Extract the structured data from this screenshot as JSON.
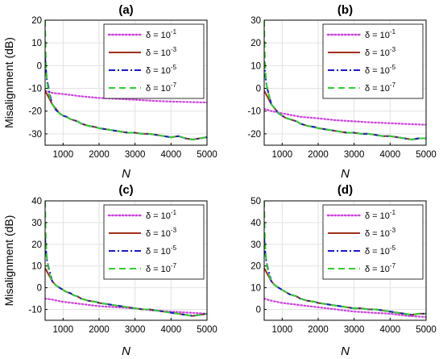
{
  "chart_data": [
    {
      "type": "line",
      "title": "(a)",
      "xlabel": "N",
      "ylabel": "Misalignment (dB)",
      "xlim": [
        500,
        5000
      ],
      "ylim": [
        -35,
        20
      ],
      "xticks": [
        1000,
        2000,
        3000,
        4000,
        5000
      ],
      "yticks": [
        -30,
        -20,
        -10,
        0,
        10,
        20
      ],
      "grid": true,
      "legend_position": "top-right",
      "series": [
        {
          "name": "δ = 10⁻¹",
          "color": "#cc44dd",
          "style": "dotted",
          "x": [
            500,
            700,
            1000,
            1500,
            2000,
            2500,
            3000,
            3500,
            4000,
            4500,
            5000
          ],
          "y": [
            -11,
            -12,
            -12.5,
            -13.5,
            -14.2,
            -14.6,
            -15,
            -15.5,
            -15.8,
            -16,
            -16.2
          ]
        },
        {
          "name": "δ = 10⁻³",
          "color": "#a0301c",
          "style": "solid",
          "x": [
            500,
            600,
            700,
            800,
            900,
            1000,
            1100,
            1200,
            1300,
            1400,
            1500,
            1700,
            1900,
            2000,
            2200,
            2400,
            2600,
            2800,
            3000,
            3200,
            3400,
            3600,
            3800,
            4000,
            4200,
            4400,
            4600,
            4800,
            5000
          ],
          "y": [
            -11,
            -14,
            -17,
            -19,
            -21,
            -22,
            -22.5,
            -23.5,
            -24,
            -24.5,
            -25.5,
            -26.5,
            -27,
            -27.5,
            -28,
            -28.5,
            -29,
            -29.5,
            -29.5,
            -30,
            -30,
            -30.5,
            -31,
            -31.5,
            -31,
            -32,
            -32.5,
            -32,
            -31.5
          ]
        },
        {
          "name": "δ = 10⁻⁵",
          "color": "#1a1acc",
          "style": "dashdot",
          "x": [
            500,
            520,
            550,
            600,
            650,
            700,
            800,
            900,
            1000,
            1100,
            1200,
            1300,
            1400,
            1500,
            1700,
            1900,
            2000,
            2200,
            2400,
            2600,
            2800,
            3000,
            3200,
            3400,
            3600,
            3800,
            4000,
            4200,
            4400,
            4600,
            4800,
            5000
          ],
          "y": [
            4,
            -1,
            -6,
            -10,
            -14,
            -17,
            -19.5,
            -21,
            -22,
            -22.5,
            -23.5,
            -24,
            -24.5,
            -25.5,
            -26.5,
            -27,
            -27.5,
            -28,
            -28.5,
            -29,
            -29.5,
            -29.5,
            -30,
            -30,
            -30.5,
            -31,
            -31.5,
            -31,
            -32,
            -32.5,
            -32,
            -31.5
          ]
        },
        {
          "name": "δ = 10⁻⁷",
          "color": "#33cc33",
          "style": "dashed",
          "x": [
            500,
            510,
            520,
            540,
            560,
            600,
            650,
            700,
            800,
            900,
            1000,
            1100,
            1200,
            1300,
            1400,
            1500,
            1700,
            1900,
            2000,
            2200,
            2400,
            2600,
            2800,
            3000,
            3200,
            3400,
            3600,
            3800,
            4000,
            4200,
            4400,
            4600,
            4800,
            5000
          ],
          "y": [
            20,
            10,
            2,
            -4,
            -8,
            -12,
            -15,
            -17,
            -19.5,
            -21,
            -22,
            -22.5,
            -23.5,
            -24,
            -24.5,
            -25.5,
            -26.5,
            -27,
            -27.5,
            -28,
            -28.5,
            -29,
            -29.5,
            -29.5,
            -30,
            -30,
            -30.5,
            -31,
            -31.5,
            -31,
            -32,
            -32.5,
            -32,
            -31.5
          ]
        }
      ]
    },
    {
      "type": "line",
      "title": "(b)",
      "xlabel": "N",
      "ylabel": "",
      "xlim": [
        500,
        5000
      ],
      "ylim": [
        -25,
        30
      ],
      "xticks": [
        1000,
        2000,
        3000,
        4000,
        5000
      ],
      "yticks": [
        -20,
        -10,
        0,
        10,
        20,
        30
      ],
      "grid": true,
      "legend_position": "top-right",
      "series": [
        {
          "name": "δ = 10⁻¹",
          "color": "#cc44dd",
          "style": "dotted",
          "x": [
            500,
            700,
            1000,
            1500,
            2000,
            2500,
            3000,
            3500,
            4000,
            4500,
            5000
          ],
          "y": [
            -9,
            -10,
            -11,
            -12.5,
            -13.2,
            -14,
            -14.5,
            -15,
            -15.3,
            -15.7,
            -16
          ]
        },
        {
          "name": "δ = 10⁻³",
          "color": "#a0301c",
          "style": "solid",
          "x": [
            500,
            600,
            700,
            800,
            900,
            1000,
            1100,
            1200,
            1300,
            1400,
            1500,
            1700,
            1900,
            2000,
            2200,
            2400,
            2600,
            2800,
            3000,
            3200,
            3400,
            3600,
            3800,
            4000,
            4200,
            4400,
            4600,
            4800,
            5000
          ],
          "y": [
            -1,
            -4,
            -7,
            -9,
            -11,
            -12,
            -13,
            -13.5,
            -14,
            -14.5,
            -15.5,
            -16.5,
            -17,
            -17.5,
            -18,
            -18.5,
            -19,
            -19.5,
            -19.5,
            -20,
            -20,
            -20.5,
            -21,
            -21,
            -21.5,
            -22,
            -22.5,
            -22,
            -22
          ]
        },
        {
          "name": "δ = 10⁻⁵",
          "color": "#1a1acc",
          "style": "dashdot",
          "x": [
            500,
            520,
            550,
            600,
            650,
            700,
            800,
            900,
            1000,
            1100,
            1200,
            1300,
            1400,
            1500,
            1700,
            1900,
            2000,
            2200,
            2400,
            2600,
            2800,
            3000,
            3200,
            3400,
            3600,
            3800,
            4000,
            4200,
            4400,
            4600,
            4800,
            5000
          ],
          "y": [
            12,
            8,
            3,
            -1,
            -4,
            -7,
            -9,
            -11,
            -12,
            -13,
            -13.5,
            -14,
            -14.5,
            -15.5,
            -16.5,
            -17,
            -17.5,
            -18,
            -18.5,
            -19,
            -19.5,
            -19.5,
            -20,
            -20,
            -20.5,
            -21,
            -21,
            -21.5,
            -22,
            -22.5,
            -22,
            -22
          ]
        },
        {
          "name": "δ = 10⁻⁷",
          "color": "#33cc33",
          "style": "dashed",
          "x": [
            500,
            510,
            520,
            540,
            560,
            600,
            650,
            700,
            800,
            900,
            1000,
            1100,
            1200,
            1300,
            1400,
            1500,
            1700,
            1900,
            2000,
            2200,
            2400,
            2600,
            2800,
            3000,
            3200,
            3400,
            3600,
            3800,
            4000,
            4200,
            4400,
            4600,
            4800,
            5000
          ],
          "y": [
            30,
            20,
            12,
            6,
            2,
            -1,
            -4,
            -7,
            -9,
            -11,
            -12,
            -13,
            -13.5,
            -14,
            -14.5,
            -15.5,
            -16.5,
            -17,
            -17.5,
            -18,
            -18.5,
            -19,
            -19.5,
            -19.5,
            -20,
            -20,
            -20.5,
            -21,
            -21,
            -21.5,
            -22,
            -22.5,
            -22,
            -22
          ]
        }
      ]
    },
    {
      "type": "line",
      "title": "(c)",
      "xlabel": "N",
      "ylabel": "Misalignment (dB)",
      "xlim": [
        500,
        5000
      ],
      "ylim": [
        -15,
        40
      ],
      "xticks": [
        1000,
        2000,
        3000,
        4000,
        5000
      ],
      "yticks": [
        -10,
        0,
        10,
        20,
        30,
        40
      ],
      "grid": true,
      "legend_position": "top-right",
      "series": [
        {
          "name": "δ = 10⁻¹",
          "color": "#cc44dd",
          "style": "dotted",
          "x": [
            500,
            700,
            1000,
            1500,
            2000,
            2500,
            3000,
            3500,
            4000,
            4500,
            5000
          ],
          "y": [
            -5,
            -5.5,
            -6.5,
            -7.5,
            -8.5,
            -9,
            -9.5,
            -10.5,
            -11,
            -11.5,
            -12
          ]
        },
        {
          "name": "δ = 10⁻³",
          "color": "#a0301c",
          "style": "solid",
          "x": [
            500,
            600,
            700,
            800,
            900,
            1000,
            1100,
            1200,
            1300,
            1400,
            1500,
            1700,
            1900,
            2000,
            2200,
            2400,
            2600,
            2800,
            3000,
            3200,
            3400,
            3600,
            3800,
            4000,
            4200,
            4400,
            4600,
            4800,
            5000
          ],
          "y": [
            9,
            6,
            3,
            1,
            0,
            -1,
            -2,
            -2.5,
            -3.5,
            -4,
            -5,
            -6,
            -6.5,
            -7,
            -7.5,
            -8,
            -8.5,
            -9,
            -9.5,
            -10,
            -10,
            -10.5,
            -11,
            -11.5,
            -12,
            -12.5,
            -13,
            -12.5,
            -12
          ]
        },
        {
          "name": "δ = 10⁻⁵",
          "color": "#1a1acc",
          "style": "dashdot",
          "x": [
            500,
            520,
            550,
            600,
            650,
            700,
            800,
            900,
            1000,
            1100,
            1200,
            1300,
            1400,
            1500,
            1700,
            1900,
            2000,
            2200,
            2400,
            2600,
            2800,
            3000,
            3200,
            3400,
            3600,
            3800,
            4000,
            4200,
            4400,
            4600,
            4800,
            5000
          ],
          "y": [
            23,
            18,
            13,
            9,
            6,
            3,
            1,
            0,
            -1,
            -2,
            -2.5,
            -3.5,
            -4,
            -5,
            -6,
            -6.5,
            -7,
            -7.5,
            -8,
            -8.5,
            -9,
            -9.5,
            -10,
            -10,
            -10.5,
            -11,
            -11.5,
            -12,
            -12.5,
            -13,
            -12.5,
            -12
          ]
        },
        {
          "name": "δ = 10⁻⁷",
          "color": "#33cc33",
          "style": "dashed",
          "x": [
            500,
            510,
            520,
            540,
            560,
            600,
            650,
            700,
            800,
            900,
            1000,
            1100,
            1200,
            1300,
            1400,
            1500,
            1700,
            1900,
            2000,
            2200,
            2400,
            2600,
            2800,
            3000,
            3200,
            3400,
            3600,
            3800,
            4000,
            4200,
            4400,
            4600,
            4800,
            5000
          ],
          "y": [
            40,
            30,
            22,
            16,
            12,
            8,
            5,
            3,
            1,
            0,
            -1,
            -2,
            -2.5,
            -3.5,
            -4,
            -5,
            -6,
            -6.5,
            -7,
            -7.5,
            -8,
            -8.5,
            -9,
            -9.5,
            -10,
            -10,
            -10.5,
            -11,
            -11.5,
            -12,
            -12.5,
            -13,
            -12.5,
            -12
          ]
        }
      ]
    },
    {
      "type": "line",
      "title": "(d)",
      "xlabel": "N",
      "ylabel": "",
      "xlim": [
        500,
        5000
      ],
      "ylim": [
        -5,
        50
      ],
      "xticks": [
        1000,
        2000,
        3000,
        4000,
        5000
      ],
      "yticks": [
        0,
        10,
        20,
        30,
        40,
        50
      ],
      "grid": true,
      "legend_position": "top-right",
      "series": [
        {
          "name": "δ = 10⁻¹",
          "color": "#cc44dd",
          "style": "dotted",
          "x": [
            500,
            700,
            1000,
            1500,
            2000,
            2500,
            3000,
            3500,
            4000,
            4500,
            5000
          ],
          "y": [
            5,
            4,
            3,
            2,
            1,
            0,
            -1,
            -1.5,
            -2,
            -3,
            -3.5
          ]
        },
        {
          "name": "δ = 10⁻³",
          "color": "#a0301c",
          "style": "solid",
          "x": [
            500,
            600,
            700,
            800,
            900,
            1000,
            1100,
            1200,
            1300,
            1400,
            1500,
            1700,
            1900,
            2000,
            2200,
            2400,
            2600,
            2800,
            3000,
            3200,
            3400,
            3600,
            3800,
            4000,
            4200,
            4400,
            4600,
            4800,
            5000
          ],
          "y": [
            19,
            16,
            13,
            11,
            10,
            9,
            8,
            7,
            6.5,
            6,
            5,
            4,
            3.5,
            3,
            2.5,
            2,
            1.5,
            1,
            0.5,
            0.5,
            0,
            0,
            -0.5,
            -1,
            -1.5,
            -2,
            -2.5,
            -2,
            -2
          ]
        },
        {
          "name": "δ = 10⁻⁵",
          "color": "#1a1acc",
          "style": "dashdot",
          "x": [
            500,
            520,
            550,
            600,
            650,
            700,
            800,
            900,
            1000,
            1100,
            1200,
            1300,
            1400,
            1500,
            1700,
            1900,
            2000,
            2200,
            2400,
            2600,
            2800,
            3000,
            3200,
            3400,
            3600,
            3800,
            4000,
            4200,
            4400,
            4600,
            4800,
            5000
          ],
          "y": [
            33,
            28,
            23,
            19,
            16,
            13,
            11,
            10,
            9,
            8,
            7,
            6.5,
            6,
            5,
            4,
            3.5,
            3,
            2.5,
            2,
            1.5,
            1,
            0.5,
            0.5,
            0,
            0,
            -0.5,
            -1,
            -1.5,
            -2,
            -2.5,
            -2,
            -2
          ]
        },
        {
          "name": "δ = 10⁻⁷",
          "color": "#33cc33",
          "style": "dashed",
          "x": [
            500,
            510,
            520,
            540,
            560,
            600,
            650,
            700,
            800,
            900,
            1000,
            1100,
            1200,
            1300,
            1400,
            1500,
            1700,
            1900,
            2000,
            2200,
            2400,
            2600,
            2800,
            3000,
            3200,
            3400,
            3600,
            3800,
            4000,
            4200,
            4400,
            4600,
            4800,
            5000
          ],
          "y": [
            50,
            40,
            32,
            26,
            22,
            18,
            15,
            13,
            11,
            10,
            9,
            8,
            7,
            6.5,
            6,
            5,
            4,
            3.5,
            3,
            2.5,
            2,
            1.5,
            1,
            0.5,
            0.5,
            0,
            0,
            -0.5,
            -1,
            -1.5,
            -2,
            -2.5,
            -2,
            -2
          ]
        }
      ]
    }
  ]
}
